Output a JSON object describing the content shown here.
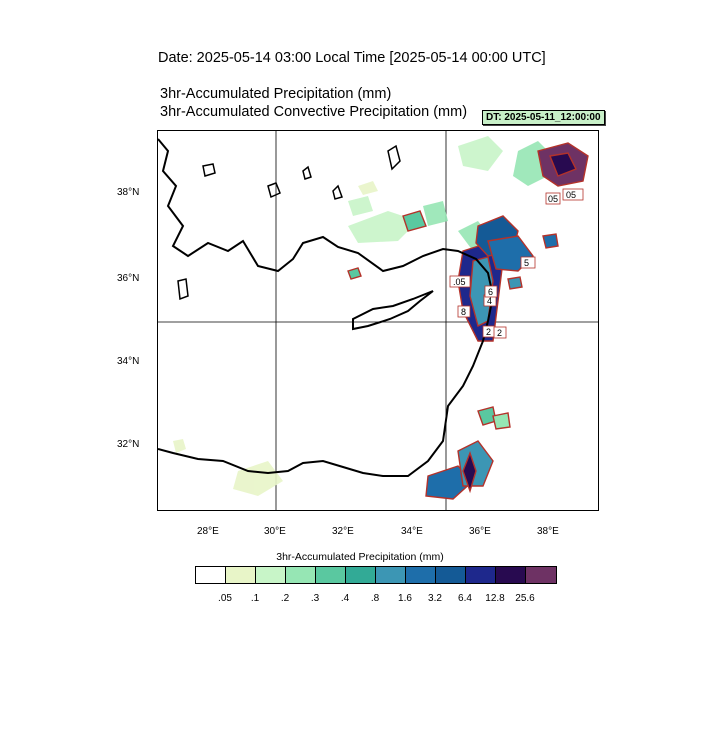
{
  "header": {
    "date_line": "Date: 2025-05-14  03:00 Local Time [2025-05-14  00:00 UTC]",
    "title_1": "3hr-Accumulated Precipitation   (mm)",
    "title_2": "3hr-Accumulated Convective Precipitation   (mm)",
    "dt_badge": "DT: 2025-05-11_12:00:00"
  },
  "map": {
    "lat_labels": [
      "38°N",
      "36°N",
      "34°N",
      "32°N"
    ],
    "lon_labels": [
      "28°E",
      "30°E",
      "32°E",
      "34°E",
      "36°E",
      "38°E"
    ],
    "lat_range": [
      30.4,
      39.4
    ],
    "lon_range": [
      26.6,
      39.4
    ]
  },
  "colorbar": {
    "title": "3hr-Accumulated Precipitation  (mm)",
    "labels": [
      ".05",
      ".1",
      ".2",
      ".3",
      ".4",
      ".8",
      "1.6",
      "3.2",
      "6.4",
      "12.8",
      "25.6"
    ],
    "colors": [
      "#ffffff",
      "#e8f5c8",
      "#c8f5c8",
      "#96e6b4",
      "#5ac8a0",
      "#32aa96",
      "#3c96b4",
      "#1e6eaa",
      "#145a96",
      "#1e288c",
      "#280a50",
      "#6e3264"
    ]
  },
  "contour_labels": [
    ".05",
    "2",
    "05",
    "4",
    "8",
    "6",
    "5",
    "05",
    "2"
  ]
}
